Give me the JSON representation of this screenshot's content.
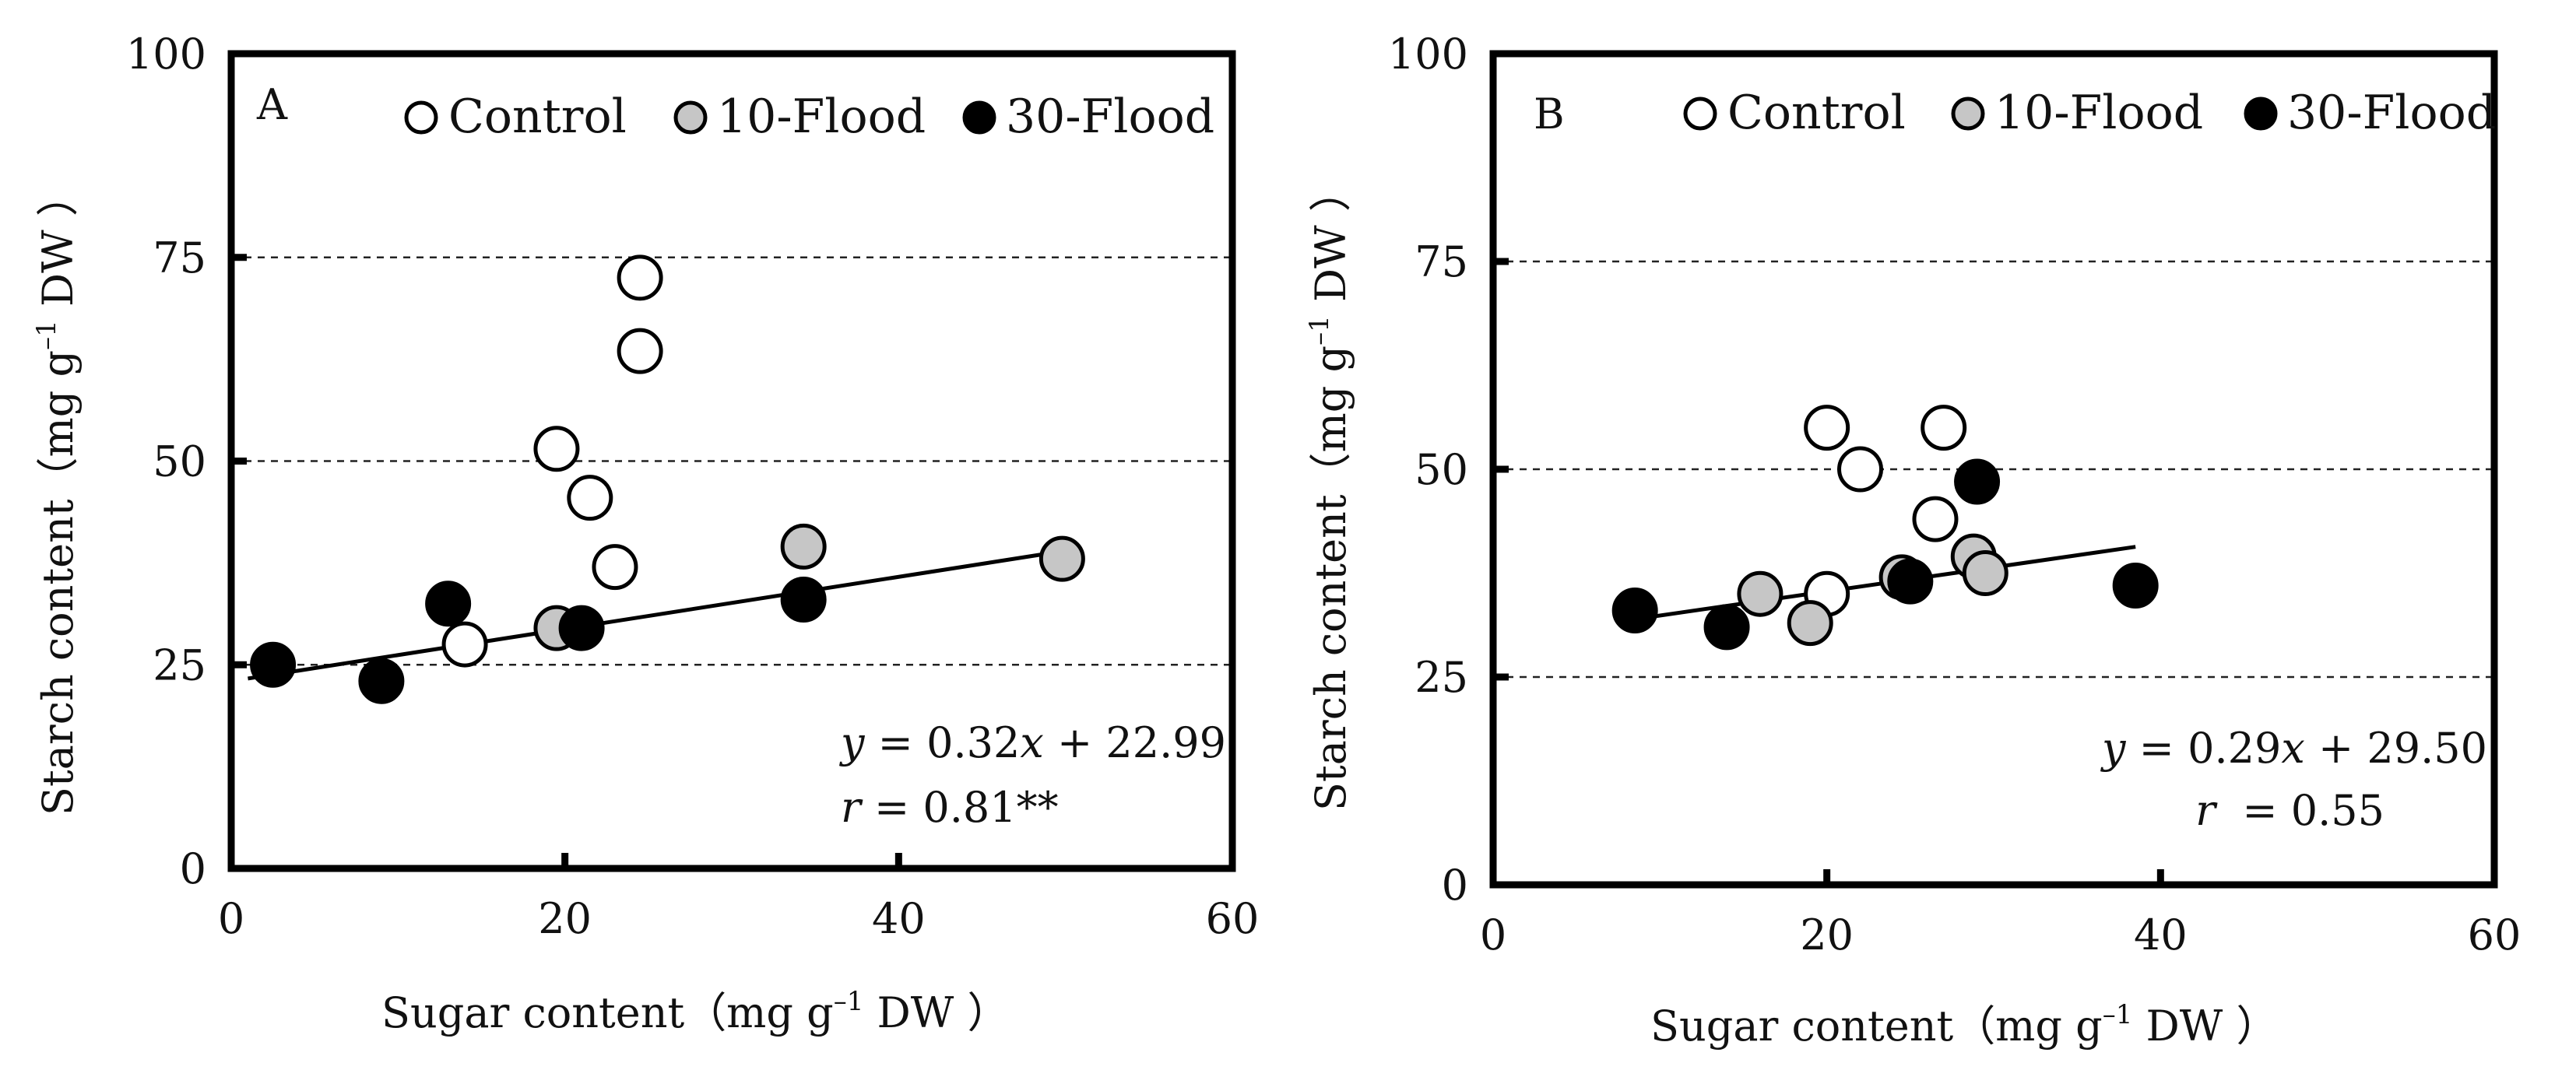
{
  "chart_data": [
    {
      "type": "scatter",
      "panel": "A",
      "xlabel": "Sugar content",
      "ylabel": "Starch content",
      "unit": "（mg g",
      "unit_exp": "–1",
      "unit_tail": " DW ）",
      "xlim": [
        0,
        60
      ],
      "ylim": [
        0,
        100
      ],
      "x_ticks": [
        "0",
        "20",
        "40",
        "60"
      ],
      "y_ticks": [
        "0",
        "25",
        "50",
        "75",
        "100"
      ],
      "grid_y": [
        25,
        50,
        75
      ],
      "legend_position": "top",
      "series": [
        {
          "name": "Control",
          "color": "#ffffff",
          "points": [
            [
              24.5,
              72.5
            ],
            [
              24.5,
              63.5
            ],
            [
              19.5,
              51.5
            ],
            [
              21.5,
              45.5
            ],
            [
              23,
              37
            ],
            [
              14,
              27.5
            ]
          ]
        },
        {
          "name": "10-Flood",
          "color": "#c6c6c6",
          "points": [
            [
              19.5,
              29.5
            ],
            [
              34.3,
              39.5
            ],
            [
              49.8,
              38
            ]
          ]
        },
        {
          "name": "30-Flood",
          "color": "#000000",
          "points": [
            [
              2.5,
              25
            ],
            [
              9,
              23
            ],
            [
              13,
              32.5
            ],
            [
              21,
              29.5
            ],
            [
              34.3,
              33
            ]
          ]
        }
      ],
      "fit": {
        "slope": 0.32,
        "intercept": 22.99,
        "x_range": [
          1,
          50
        ]
      },
      "equation": {
        "y": "y",
        "eq1": " = 0.32",
        "x": "x",
        "eq2": " + 22.99",
        "r": "r",
        "r_text": " = 0.81**"
      }
    },
    {
      "type": "scatter",
      "panel": "B",
      "xlabel": "Sugar content",
      "ylabel": "Starch content",
      "unit": "（mg g",
      "unit_exp": "–1",
      "unit_tail": " DW ）",
      "xlim": [
        0,
        60
      ],
      "ylim": [
        0,
        100
      ],
      "x_ticks": [
        "0",
        "20",
        "40",
        "60"
      ],
      "y_ticks": [
        "0",
        "25",
        "50",
        "75",
        "100"
      ],
      "grid_y": [
        25,
        50,
        75
      ],
      "legend_position": "top",
      "series": [
        {
          "name": "Control",
          "color": "#ffffff",
          "points": [
            [
              20,
              55
            ],
            [
              27,
              55
            ],
            [
              22,
              50
            ],
            [
              26.5,
              44
            ],
            [
              20,
              35
            ]
          ]
        },
        {
          "name": "10-Flood",
          "color": "#c6c6c6",
          "points": [
            [
              16,
              35
            ],
            [
              19,
              31.5
            ],
            [
              24.5,
              37
            ],
            [
              28.8,
              39.5
            ],
            [
              29.5,
              37.5
            ]
          ]
        },
        {
          "name": "30-Flood",
          "color": "#000000",
          "points": [
            [
              8.5,
              33
            ],
            [
              14,
              31
            ],
            [
              25,
              36.5
            ],
            [
              29,
              48.5
            ],
            [
              38.5,
              36
            ]
          ]
        }
      ],
      "fit": {
        "slope": 0.29,
        "intercept": 29.5,
        "x_range": [
          8.5,
          38.5
        ]
      },
      "equation": {
        "y": "y",
        "eq1": " = 0.29",
        "x": "x",
        "eq2": " + 29.50",
        "r": "r",
        "r_text": "  = 0.55"
      }
    }
  ]
}
